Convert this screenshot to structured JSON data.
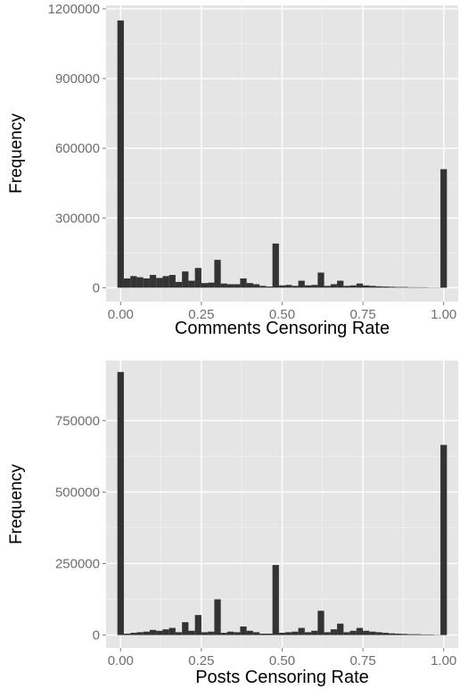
{
  "colors": {
    "panel_background": "#e5e5e5",
    "grid_major": "#ffffff",
    "grid_minor": "#f2f2f2",
    "bar_fill": "#333333",
    "tick_text": "#6e6e6e"
  },
  "chart_data": [
    {
      "type": "bar",
      "title": "",
      "xlabel": "Comments Censoring Rate",
      "ylabel": "Frequency",
      "xlim": [
        -0.045,
        1.045
      ],
      "ylim": [
        -60000,
        1215000
      ],
      "x_ticks": [
        {
          "value": 0.0,
          "label": "0.00"
        },
        {
          "value": 0.25,
          "label": "0.25"
        },
        {
          "value": 0.5,
          "label": "0.50"
        },
        {
          "value": 0.75,
          "label": "0.75"
        },
        {
          "value": 1.0,
          "label": "1.00"
        }
      ],
      "y_ticks": [
        {
          "value": 0,
          "label": "0"
        },
        {
          "value": 300000,
          "label": "300000"
        },
        {
          "value": 600000,
          "label": "600000"
        },
        {
          "value": 900000,
          "label": "900000"
        },
        {
          "value": 1200000,
          "label": "1200000"
        }
      ],
      "grid": true,
      "bin_width": 0.02,
      "x": [
        0.0,
        0.02,
        0.04,
        0.06,
        0.08,
        0.1,
        0.12,
        0.14,
        0.16,
        0.18,
        0.2,
        0.22,
        0.24,
        0.26,
        0.28,
        0.3,
        0.32,
        0.34,
        0.36,
        0.38,
        0.4,
        0.42,
        0.44,
        0.46,
        0.48,
        0.5,
        0.52,
        0.54,
        0.56,
        0.58,
        0.6,
        0.62,
        0.64,
        0.66,
        0.68,
        0.7,
        0.72,
        0.74,
        0.76,
        0.78,
        0.8,
        0.82,
        0.84,
        0.86,
        0.88,
        0.9,
        0.92,
        0.94,
        0.96,
        0.98,
        1.0
      ],
      "values": [
        1150000,
        40000,
        50000,
        45000,
        40000,
        55000,
        42000,
        50000,
        55000,
        25000,
        70000,
        30000,
        85000,
        20000,
        22000,
        120000,
        18000,
        15000,
        15000,
        40000,
        20000,
        15000,
        8000,
        5000,
        190000,
        10000,
        12000,
        8000,
        30000,
        10000,
        12000,
        65000,
        8000,
        15000,
        30000,
        8000,
        10000,
        18000,
        10000,
        8000,
        6000,
        5000,
        4000,
        3000,
        3000,
        2000,
        2000,
        2000,
        1000,
        1000,
        510000
      ]
    },
    {
      "type": "bar",
      "title": "",
      "xlabel": "Posts Censoring Rate",
      "ylabel": "Frequency",
      "xlim": [
        -0.045,
        1.045
      ],
      "ylim": [
        -45000,
        960000
      ],
      "x_ticks": [
        {
          "value": 0.0,
          "label": "0.00"
        },
        {
          "value": 0.25,
          "label": "0.25"
        },
        {
          "value": 0.5,
          "label": "0.50"
        },
        {
          "value": 0.75,
          "label": "0.75"
        },
        {
          "value": 1.0,
          "label": "1.00"
        }
      ],
      "y_ticks": [
        {
          "value": 0,
          "label": "0"
        },
        {
          "value": 250000,
          "label": "250000"
        },
        {
          "value": 500000,
          "label": "500000"
        },
        {
          "value": 750000,
          "label": "750000"
        }
      ],
      "grid": true,
      "bin_width": 0.02,
      "x": [
        0.0,
        0.02,
        0.04,
        0.06,
        0.08,
        0.1,
        0.12,
        0.14,
        0.16,
        0.18,
        0.2,
        0.22,
        0.24,
        0.26,
        0.28,
        0.3,
        0.32,
        0.34,
        0.36,
        0.38,
        0.4,
        0.42,
        0.44,
        0.46,
        0.48,
        0.5,
        0.52,
        0.54,
        0.56,
        0.58,
        0.6,
        0.62,
        0.64,
        0.66,
        0.68,
        0.7,
        0.72,
        0.74,
        0.76,
        0.78,
        0.8,
        0.82,
        0.84,
        0.86,
        0.88,
        0.9,
        0.92,
        0.94,
        0.96,
        0.98,
        1.0
      ],
      "values": [
        920000,
        5000,
        8000,
        10000,
        12000,
        18000,
        15000,
        20000,
        25000,
        10000,
        45000,
        15000,
        70000,
        10000,
        12000,
        125000,
        8000,
        12000,
        10000,
        30000,
        15000,
        10000,
        5000,
        5000,
        245000,
        8000,
        10000,
        12000,
        25000,
        10000,
        15000,
        85000,
        10000,
        20000,
        40000,
        10000,
        15000,
        25000,
        15000,
        12000,
        10000,
        8000,
        6000,
        5000,
        4000,
        3000,
        3000,
        2000,
        2000,
        1000,
        665000
      ]
    }
  ]
}
